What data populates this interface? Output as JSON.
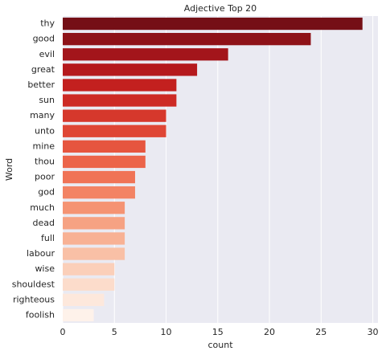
{
  "chart_data": {
    "type": "barh",
    "title": "Adjective Top 20",
    "xlabel": "count",
    "ylabel": "Word",
    "categories": [
      "thy",
      "good",
      "evil",
      "great",
      "better",
      "sun",
      "many",
      "unto",
      "mine",
      "thou",
      "poor",
      "god",
      "much",
      "dead",
      "full",
      "labour",
      "wise",
      "shouldest",
      "righteous",
      "foolish"
    ],
    "values": [
      29,
      24,
      16,
      13,
      11,
      11,
      10,
      10,
      8,
      8,
      7,
      7,
      6,
      6,
      6,
      6,
      5,
      5,
      4,
      3
    ],
    "colors": [
      "#750f16",
      "#8e1218",
      "#a3151b",
      "#b5191d",
      "#c3201f",
      "#cd2a25",
      "#d6382c",
      "#df4635",
      "#e6553f",
      "#ec644a",
      "#f07356",
      "#f38364",
      "#f59373",
      "#f6a283",
      "#f8b194",
      "#f9c0a6",
      "#fbcfb9",
      "#fcdccb",
      "#fde8dc",
      "#fef2ea"
    ],
    "xlim": [
      0,
      30.5
    ],
    "xticks": [
      0,
      5,
      10,
      15,
      20,
      25,
      30
    ],
    "grid": true
  }
}
